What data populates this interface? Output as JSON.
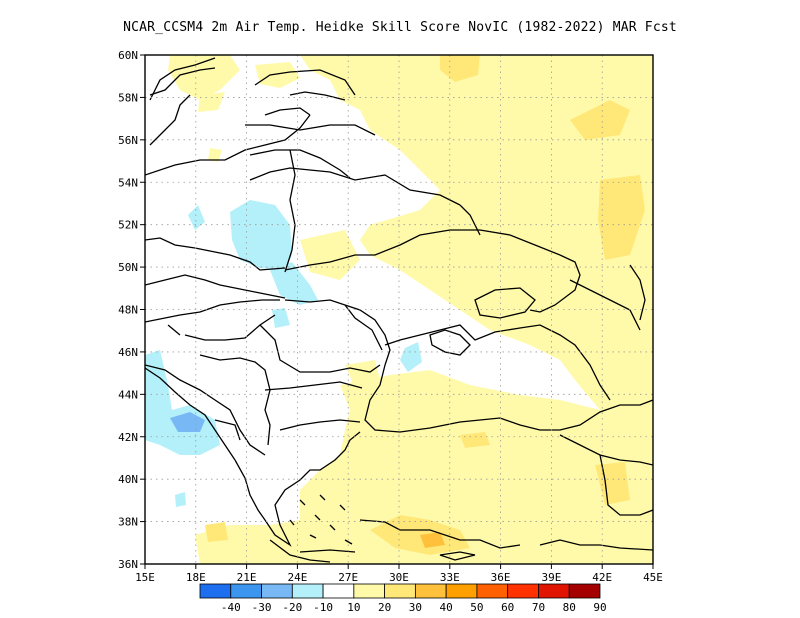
{
  "title": "NCAR_CCSM4  2m Air Temp. Heidke Skill Score NovIC (1982-2022) MAR Fcst",
  "map": {
    "lon_labels": [
      "15E",
      "18E",
      "21E",
      "24E",
      "27E",
      "30E",
      "33E",
      "36E",
      "39E",
      "42E",
      "45E"
    ],
    "lat_labels": [
      "36N",
      "38N",
      "40N",
      "42N",
      "44N",
      "46N",
      "48N",
      "50N",
      "52N",
      "54N",
      "56N",
      "58N",
      "60N"
    ]
  },
  "colorbar": {
    "labels": [
      "-40",
      "-30",
      "-20",
      "-10",
      "10",
      "20",
      "30",
      "40",
      "50",
      "60",
      "70",
      "80",
      "90"
    ],
    "colors": [
      "#1e6ff0",
      "#3c96f0",
      "#78b9f5",
      "#b4f0fa",
      "#ffffff",
      "#fffaaa",
      "#ffe878",
      "#ffc03c",
      "#ffa000",
      "#ff6000",
      "#ff3200",
      "#e11400",
      "#a50000"
    ]
  }
}
